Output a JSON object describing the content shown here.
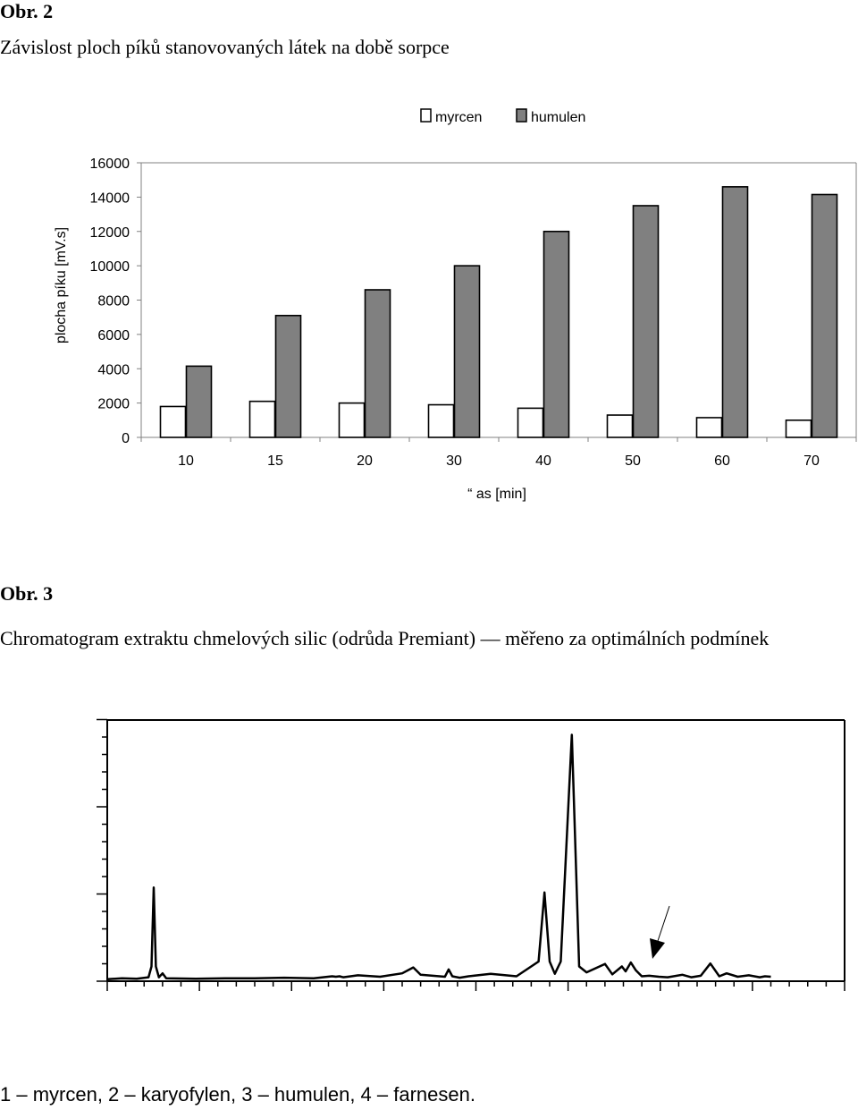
{
  "fig2": {
    "label": "Obr. 2",
    "caption": "Závislost ploch píků stanovovaných látek na době sorpce"
  },
  "chart_data": [
    {
      "type": "bar",
      "title": "",
      "xlabel": "“ as [min]",
      "ylabel": "plocha píku [mV.s]",
      "categories": [
        "10",
        "15",
        "20",
        "30",
        "40",
        "50",
        "60",
        "70"
      ],
      "ylim": [
        0,
        16000
      ],
      "yticks": [
        0,
        2000,
        4000,
        6000,
        8000,
        10000,
        12000,
        14000,
        16000
      ],
      "grid": false,
      "legend": "top-right",
      "series": [
        {
          "name": "myrcen",
          "color": "#ffffff",
          "values": [
            1800,
            2100,
            2000,
            1900,
            1700,
            1300,
            1150,
            1000
          ]
        },
        {
          "name": "humulen",
          "color": "#808080",
          "values": [
            4150,
            7100,
            8600,
            10000,
            12000,
            13500,
            14600,
            14150
          ]
        }
      ]
    },
    {
      "type": "line",
      "title": "",
      "xlabel": "",
      "ylabel": "",
      "grid": false,
      "series": [
        {
          "name": "",
          "color": "#000000",
          "x": [
            0,
            2,
            4,
            5.6,
            6.0,
            6.3,
            6.6,
            7.0,
            7.5,
            8,
            12,
            16,
            20,
            24,
            28,
            30.5,
            31,
            31.5,
            32,
            34,
            37,
            40,
            41.5,
            42.5,
            45.8,
            46.3,
            46.8,
            47.8,
            49,
            52,
            55.5,
            58.5,
            59.3,
            60,
            60.7,
            61.5,
            63,
            64,
            65,
            67.5,
            68.5,
            69.8,
            70.3,
            71,
            71.7,
            72.5,
            73.5,
            74.8,
            76,
            78,
            79.2,
            80.5,
            81.8,
            83,
            84,
            85.5,
            87,
            88.5,
            89.2,
            90
          ],
          "y": [
            0.4,
            0.6,
            0.5,
            0.8,
            3,
            19,
            3,
            0.8,
            1.6,
            0.6,
            0.5,
            0.6,
            0.6,
            0.7,
            0.6,
            1.0,
            0.9,
            1.0,
            0.8,
            1.2,
            0.9,
            1.6,
            2.8,
            1.3,
            0.9,
            2.4,
            1.0,
            0.7,
            1.0,
            1.5,
            1.0,
            4.0,
            18,
            4.0,
            1.5,
            4.0,
            50,
            3.0,
            1.8,
            3.5,
            1.4,
            3.0,
            2.0,
            3.8,
            2.2,
            1.0,
            1.1,
            0.9,
            0.8,
            1.3,
            0.8,
            1.1,
            3.6,
            1.0,
            1.6,
            0.9,
            1.2,
            0.8,
            1.0,
            0.9
          ]
        }
      ],
      "annotations": [
        "arrow"
      ]
    }
  ],
  "fig3": {
    "label": "Obr. 3",
    "caption": "Chromatogram extraktu chmelových silic (odrůda Premiant) — měřeno za optimálních podmínek"
  },
  "footnote": "1 – myrcen, 2 – karyofylen, 3 – humulen, 4 – farnesen."
}
